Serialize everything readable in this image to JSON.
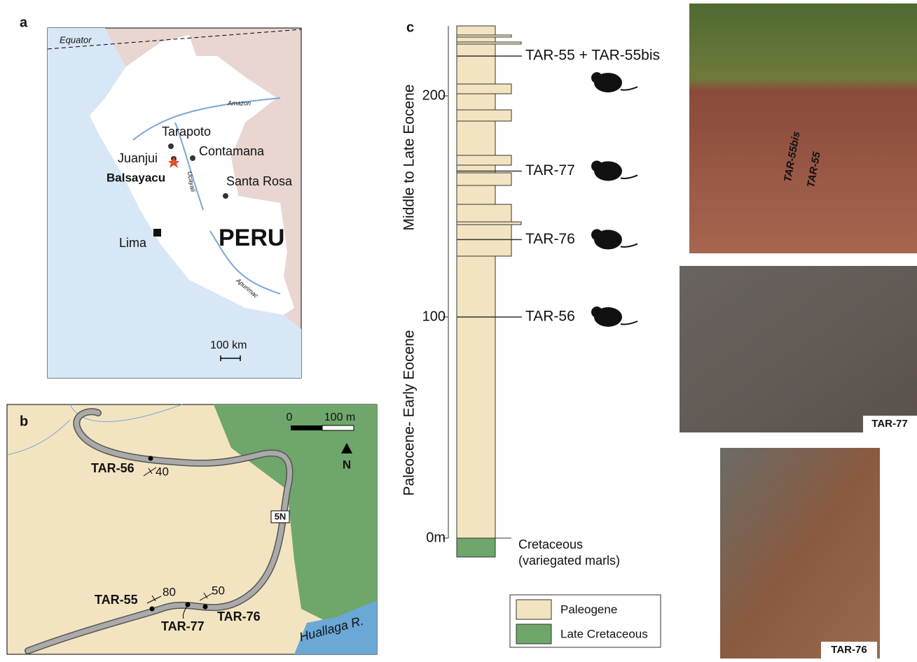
{
  "panel_a": {
    "label": "a",
    "equator": "Equator",
    "rivers": [
      "Amazon",
      "Ucayali",
      "Apurimac"
    ],
    "places": [
      "Tarapoto",
      "Juanjui",
      "Balsayacu",
      "Contamana",
      "Santa Rosa",
      "Lima"
    ],
    "country": "PERU",
    "scale": "100 km"
  },
  "panel_b": {
    "label": "b",
    "scale_start": "0",
    "scale_end": "100 m",
    "north": "N",
    "road": "5N",
    "river": "Huallaga R.",
    "sites": [
      "TAR-56",
      "TAR-55",
      "TAR-77",
      "TAR-76"
    ],
    "dips": [
      "40",
      "80",
      "50"
    ]
  },
  "panel_c": {
    "label": "c",
    "yticks": [
      {
        "value": 0,
        "label": "0m"
      },
      {
        "value": 100,
        "label": "100"
      },
      {
        "value": 200,
        "label": "200"
      }
    ],
    "ages": [
      "Middle to Late Eocene",
      "Paleocene- Early Eocene"
    ],
    "levels": [
      {
        "name": "TAR-55 + TAR-55bis",
        "value": 218
      },
      {
        "name": "TAR-77",
        "value": 166
      },
      {
        "name": "TAR-76",
        "value": 135
      },
      {
        "name": "TAR-56",
        "value": 100
      }
    ],
    "base": [
      "Cretaceous",
      "(variegated marls)"
    ],
    "legend": [
      "Paleogene",
      "Late Cretaceous"
    ]
  },
  "photos": {
    "top": [
      "TAR-55bis",
      "TAR-55"
    ],
    "middle": "TAR-77",
    "bottom": "TAR-76"
  }
}
